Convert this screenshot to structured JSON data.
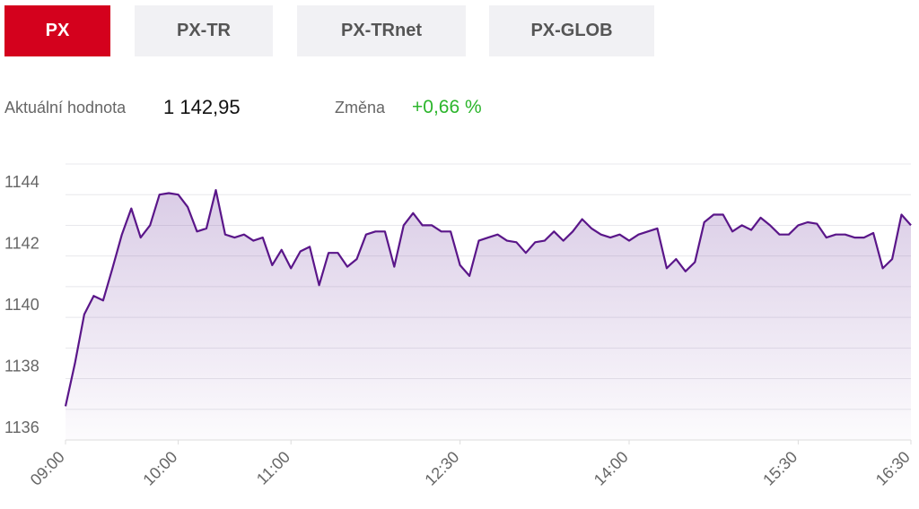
{
  "tabs": [
    "PX",
    "PX-TR",
    "PX-TRnet",
    "PX-GLOB"
  ],
  "info": {
    "value_label": "Aktuální hodnota",
    "value": "1 142,95",
    "change_label": "Změna",
    "change": "+0,66 %"
  },
  "chart_data": {
    "type": "area",
    "color": "#5a1689",
    "x": [
      540,
      545,
      550,
      555,
      560,
      565,
      570,
      575,
      580,
      585,
      590,
      595,
      600,
      605,
      610,
      615,
      620,
      625,
      630,
      635,
      640,
      645,
      650,
      655,
      660,
      665,
      670,
      675,
      680,
      685,
      690,
      695,
      700,
      705,
      710,
      715,
      720,
      725,
      730,
      735,
      740,
      745,
      750,
      755,
      760,
      765,
      770,
      775,
      780,
      785,
      790,
      795,
      800,
      805,
      810,
      815,
      820,
      825,
      830,
      835,
      840,
      845,
      850,
      855,
      860,
      865,
      870,
      875,
      880,
      885,
      890,
      895,
      900,
      905,
      910,
      915,
      920,
      925,
      930,
      935,
      940,
      945,
      950,
      955,
      960,
      965,
      970,
      975,
      980,
      985,
      990
    ],
    "values": [
      1137.1,
      1138.5,
      1140.1,
      1140.7,
      1140.55,
      1141.6,
      1142.7,
      1143.55,
      1142.6,
      1143.0,
      1144.0,
      1144.05,
      1144.0,
      1143.6,
      1142.8,
      1142.9,
      1144.15,
      1142.7,
      1142.6,
      1142.7,
      1142.5,
      1142.6,
      1141.7,
      1142.2,
      1141.6,
      1142.15,
      1142.3,
      1141.05,
      1142.1,
      1142.1,
      1141.65,
      1141.9,
      1142.7,
      1142.8,
      1142.8,
      1141.65,
      1143.0,
      1143.4,
      1143.0,
      1143.0,
      1142.8,
      1142.8,
      1141.7,
      1141.35,
      1142.5,
      1142.6,
      1142.7,
      1142.5,
      1142.45,
      1142.1,
      1142.45,
      1142.5,
      1142.8,
      1142.5,
      1142.8,
      1143.2,
      1142.9,
      1142.7,
      1142.6,
      1142.7,
      1142.5,
      1142.7,
      1142.8,
      1142.9,
      1141.6,
      1141.9,
      1141.5,
      1141.8,
      1143.1,
      1143.35,
      1143.35,
      1142.8,
      1143.0,
      1142.85,
      1143.25,
      1143.0,
      1142.7,
      1142.7,
      1143.0,
      1143.1,
      1143.05,
      1142.6,
      1142.7,
      1142.7,
      1142.6,
      1142.6,
      1142.75,
      1141.6,
      1141.9,
      1143.35,
      1143.0
    ],
    "xlim": [
      540,
      990
    ],
    "xticks": [
      {
        "value": 540,
        "label": "09:00"
      },
      {
        "value": 600,
        "label": "10:00"
      },
      {
        "value": 660,
        "label": "11:00"
      },
      {
        "value": 750,
        "label": "12:30"
      },
      {
        "value": 840,
        "label": "14:00"
      },
      {
        "value": 930,
        "label": "15:30"
      },
      {
        "value": 990,
        "label": "16:30"
      }
    ],
    "ylim": [
      1136,
      1145
    ],
    "yticks": [
      1136,
      1138,
      1140,
      1142,
      1144
    ],
    "minor_grid": [
      1137,
      1139,
      1141,
      1143,
      1145
    ],
    "grid": true
  }
}
